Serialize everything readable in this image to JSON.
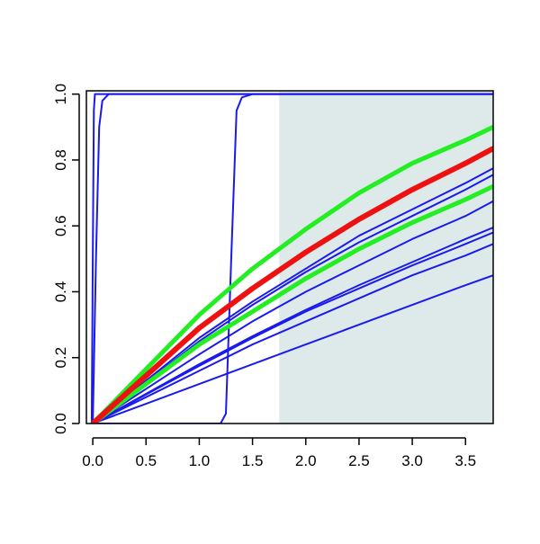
{
  "chart_data": {
    "type": "line",
    "xlim": [
      -0.06,
      3.76
    ],
    "ylim": [
      0,
      1.01
    ],
    "xticks": [
      {
        "value": 0,
        "label": "0.0"
      },
      0.5,
      {
        "value": 1,
        "label": "1.0"
      },
      1.5,
      {
        "value": 2,
        "label": "2.0"
      },
      2.5,
      {
        "value": 3,
        "label": "3.0"
      },
      3.5
    ],
    "yticks": [
      {
        "value": 0,
        "label": "0.0"
      },
      0.2,
      0.4,
      0.6,
      0.8,
      {
        "value": 1,
        "label": "1.0"
      }
    ],
    "shaded_region": {
      "xmin": 1.75,
      "color": "#deeaea"
    },
    "series": [
      {
        "color": "#1a1aee",
        "line_width": 2,
        "x": [
          -0.01,
          0,
          0.01,
          0.02,
          3.76
        ],
        "values": [
          0,
          0.5,
          0.95,
          1,
          1
        ]
      },
      {
        "color": "#1a1aee",
        "line_width": 2,
        "x": [
          0,
          0.03,
          0.06,
          0.09,
          0.15,
          3.76
        ],
        "values": [
          0,
          0.5,
          0.9,
          0.98,
          1,
          1
        ]
      },
      {
        "color": "#1a1aee",
        "line_width": 2,
        "x": [
          0,
          1.2,
          1.25,
          1.3,
          1.35,
          1.4,
          1.5,
          3.76
        ],
        "values": [
          0,
          0,
          0.03,
          0.5,
          0.95,
          0.99,
          1,
          1
        ]
      },
      {
        "color": "#1a1aee",
        "line_width": 2,
        "x": [
          0,
          0.5,
          1,
          1.5,
          2,
          2.5,
          3,
          3.5,
          3.76
        ],
        "values": [
          0,
          0.145,
          0.29,
          0.41,
          0.52,
          0.62,
          0.71,
          0.79,
          0.84
        ]
      },
      {
        "color": "#1a1aee",
        "line_width": 2,
        "x": [
          0,
          0.5,
          1,
          1.5,
          2,
          2.5,
          3,
          3.5,
          3.76
        ],
        "values": [
          0,
          0.13,
          0.26,
          0.37,
          0.47,
          0.57,
          0.65,
          0.73,
          0.775
        ]
      },
      {
        "color": "#1a1aee",
        "line_width": 2,
        "x": [
          0,
          0.5,
          1,
          1.5,
          2,
          2.5,
          3,
          3.5,
          3.76
        ],
        "values": [
          0,
          0.125,
          0.25,
          0.36,
          0.46,
          0.55,
          0.63,
          0.71,
          0.755
        ]
      },
      {
        "color": "#1a1aee",
        "line_width": 2,
        "x": [
          0,
          0.5,
          1,
          1.5,
          2,
          2.5,
          3,
          3.5,
          3.76
        ],
        "values": [
          0,
          0.105,
          0.21,
          0.31,
          0.4,
          0.48,
          0.56,
          0.63,
          0.675
        ]
      },
      {
        "color": "#1a1aee",
        "line_width": 2,
        "x": [
          0,
          0.5,
          1,
          1.5,
          2,
          2.5,
          3,
          3.5,
          3.76
        ],
        "values": [
          0,
          0.09,
          0.18,
          0.265,
          0.345,
          0.42,
          0.49,
          0.56,
          0.595
        ]
      },
      {
        "color": "#1a1aee",
        "line_width": 2,
        "x": [
          0,
          0.5,
          1,
          1.5,
          2,
          2.5,
          3,
          3.5,
          3.76
        ],
        "values": [
          0,
          0.088,
          0.175,
          0.26,
          0.34,
          0.41,
          0.48,
          0.545,
          0.58
        ]
      },
      {
        "color": "#1a1aee",
        "line_width": 2,
        "x": [
          0,
          0.5,
          1,
          1.5,
          2,
          2.5,
          3,
          3.5,
          3.76
        ],
        "values": [
          0,
          0.08,
          0.16,
          0.24,
          0.31,
          0.38,
          0.45,
          0.51,
          0.545
        ]
      },
      {
        "color": "#1a1aee",
        "line_width": 2,
        "x": [
          0,
          0.5,
          1,
          1.5,
          2,
          2.5,
          3,
          3.5,
          3.76
        ],
        "values": [
          0,
          0.06,
          0.12,
          0.18,
          0.24,
          0.3,
          0.36,
          0.42,
          0.45
        ]
      },
      {
        "color": "#22ee22",
        "line_width": 5,
        "x": [
          0,
          0.5,
          1,
          1.5,
          2,
          2.5,
          3,
          3.5,
          3.76
        ],
        "values": [
          0,
          0.165,
          0.33,
          0.47,
          0.59,
          0.7,
          0.79,
          0.86,
          0.9
        ]
      },
      {
        "color": "#22ee22",
        "line_width": 5,
        "x": [
          0,
          0.5,
          1,
          1.5,
          2,
          2.5,
          3,
          3.5,
          3.76
        ],
        "values": [
          0,
          0.12,
          0.24,
          0.34,
          0.44,
          0.53,
          0.61,
          0.68,
          0.72
        ]
      },
      {
        "color": "#ee1111",
        "line_width": 6,
        "x": [
          0,
          0.5,
          1,
          1.5,
          2,
          2.5,
          3,
          3.5,
          3.76
        ],
        "values": [
          0,
          0.145,
          0.29,
          0.41,
          0.52,
          0.62,
          0.71,
          0.79,
          0.835
        ]
      }
    ]
  }
}
